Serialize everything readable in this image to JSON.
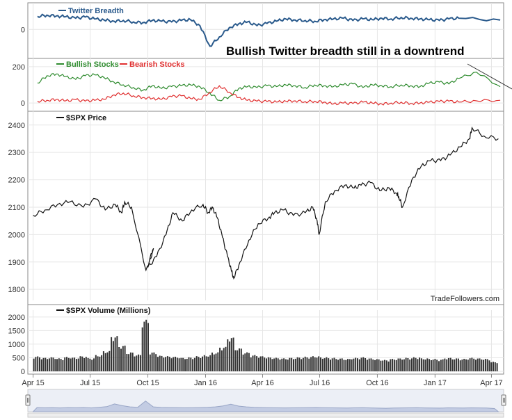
{
  "annotation": "Bullish Twitter breadth still in a downtrend",
  "credit": "TradeFollowers.com",
  "colors": {
    "breadth": "#2a5a8c",
    "bullish": "#2e8b2e",
    "bearish": "#e03030",
    "price": "#111111",
    "volume": "#333333",
    "navigator": "#8f9cbf"
  },
  "chart_data": [
    {
      "type": "line",
      "panel": "twitter-breadth",
      "series": [
        {
          "name": "Twitter Breadth",
          "values": [
            35,
            38,
            36,
            34,
            30,
            33,
            28,
            25,
            22,
            24,
            20,
            18,
            24,
            22,
            20,
            24,
            26,
            10,
            -45,
            -20,
            5,
            15,
            20,
            10,
            16,
            22,
            28,
            25,
            24,
            22,
            26,
            28,
            30,
            24,
            28,
            26,
            30,
            28,
            32,
            30,
            28,
            26,
            24,
            28,
            30,
            25
          ]
        }
      ],
      "x": [
        "2015-04-08",
        "2015-04-23",
        "2015-05-08",
        "2015-05-23",
        "2015-06-08",
        "2015-06-23",
        "2015-07-08",
        "2015-07-23",
        "2015-08-08",
        "2015-08-23",
        "2015-09-08",
        "2015-09-23",
        "2015-10-08",
        "2015-10-23",
        "2015-11-08",
        "2015-11-23",
        "2015-12-08",
        "2015-12-23",
        "2016-01-08",
        "2016-01-23",
        "2016-02-08",
        "2016-02-23",
        "2016-03-08",
        "2016-03-23",
        "2016-04-08",
        "2016-04-23",
        "2016-05-08",
        "2016-05-23",
        "2016-06-08",
        "2016-06-23",
        "2016-07-08",
        "2016-07-23",
        "2016-08-08",
        "2016-08-23",
        "2016-09-08",
        "2016-09-23",
        "2016-10-08",
        "2016-10-23",
        "2016-11-08",
        "2016-11-23",
        "2016-12-08",
        "2016-12-23",
        "2017-01-08",
        "2017-01-23",
        "2017-02-08",
        "2017-04-15"
      ],
      "yticks": [
        0
      ],
      "ylim": [
        -70,
        60
      ]
    },
    {
      "type": "line",
      "panel": "stocks",
      "series": [
        {
          "name": "Bullish Stocks",
          "values": [
            110,
            150,
            160,
            145,
            130,
            150,
            155,
            140,
            115,
            100,
            85,
            70,
            95,
            80,
            90,
            95,
            100,
            90,
            55,
            15,
            35,
            80,
            90,
            85,
            95,
            90,
            100,
            95,
            85,
            100,
            95,
            90,
            100,
            105,
            85,
            100,
            95,
            90,
            100,
            95,
            90,
            110,
            115,
            105,
            135,
            170,
            90
          ]
        },
        {
          "name": "Bearish Stocks",
          "values": [
            10,
            15,
            20,
            12,
            18,
            10,
            15,
            20,
            45,
            55,
            40,
            30,
            25,
            20,
            35,
            40,
            25,
            20,
            60,
            95,
            60,
            30,
            15,
            10,
            8,
            5,
            10,
            12,
            8,
            10,
            5,
            -5,
            0,
            -3,
            5,
            0,
            -5,
            0,
            5,
            -2,
            0,
            5,
            8,
            10,
            5,
            12,
            15
          ]
        }
      ],
      "x": [
        "2015-04-08",
        "2015-04-23",
        "2015-05-08",
        "2015-05-23",
        "2015-06-08",
        "2015-06-23",
        "2015-07-08",
        "2015-07-23",
        "2015-08-08",
        "2015-08-23",
        "2015-09-08",
        "2015-09-23",
        "2015-10-08",
        "2015-10-23",
        "2015-11-08",
        "2015-11-23",
        "2015-12-08",
        "2015-12-23",
        "2016-01-08",
        "2016-01-23",
        "2016-02-08",
        "2016-02-23",
        "2016-03-08",
        "2016-03-23",
        "2016-04-08",
        "2016-04-23",
        "2016-05-08",
        "2016-05-23",
        "2016-06-08",
        "2016-06-23",
        "2016-07-08",
        "2016-07-23",
        "2016-08-08",
        "2016-08-23",
        "2016-09-08",
        "2016-09-23",
        "2016-10-08",
        "2016-10-23",
        "2016-11-08",
        "2016-11-23",
        "2016-12-08",
        "2016-12-23",
        "2017-01-08",
        "2017-01-23",
        "2017-02-08",
        "2017-03-08",
        "2017-04-15"
      ],
      "yticks": [
        0,
        200
      ],
      "ylim": [
        -30,
        230
      ]
    },
    {
      "type": "line",
      "panel": "price",
      "series": [
        {
          "name": "$SPX Price",
          "values": [
            2070,
            2090,
            2110,
            2120,
            2100,
            2130,
            2090,
            2110,
            2080,
            2120,
            2100,
            1870,
            1950,
            1880,
            1920,
            2000,
            2080,
            2050,
            2090,
            2110,
            2080,
            2100,
            2060,
            1990,
            1920,
            1870,
            1840,
            1900,
            1980,
            2040,
            2060,
            2080,
            2090,
            2070,
            2080,
            2100,
            2050,
            2000,
            2120,
            2160,
            2180,
            2170,
            2180,
            2190,
            2160,
            2170,
            2150,
            2140,
            2100,
            2200,
            2250,
            2270,
            2270,
            2290,
            2320,
            2350,
            2390,
            2360,
            2350
          ]
        }
      ],
      "x": [
        "2015-04-01",
        "2015-04-20",
        "2015-05-10",
        "2015-05-30",
        "2015-06-20",
        "2015-07-10",
        "2015-07-25",
        "2015-08-10",
        "2015-08-20",
        "2015-08-25",
        "2015-09-05",
        "2015-09-28",
        "2015-10-10",
        "2015-10-01",
        "2015-10-15",
        "2015-10-30",
        "2015-11-10",
        "2015-11-25",
        "2015-12-10",
        "2015-12-28",
        "2016-01-05",
        "2016-01-12",
        "2016-01-20",
        "2016-01-28",
        "2016-02-05",
        "2016-02-11",
        "2016-02-15",
        "2016-02-25",
        "2016-03-10",
        "2016-03-25",
        "2016-04-10",
        "2016-04-20",
        "2016-05-05",
        "2016-05-20",
        "2016-06-08",
        "2016-06-20",
        "2016-06-27",
        "2016-06-30",
        "2016-07-10",
        "2016-07-25",
        "2016-08-10",
        "2016-08-25",
        "2016-09-05",
        "2016-09-20",
        "2016-10-05",
        "2016-10-20",
        "2016-11-01",
        "2016-11-04",
        "2016-11-10",
        "2016-11-25",
        "2016-12-10",
        "2016-12-25",
        "2017-01-10",
        "2017-01-25",
        "2017-02-10",
        "2017-02-25",
        "2017-03-01",
        "2017-03-20",
        "2017-04-12"
      ],
      "yticks": [
        1800,
        1900,
        2000,
        2100,
        2200,
        2300,
        2400
      ],
      "ylim": [
        1770,
        2440
      ]
    },
    {
      "type": "bar",
      "panel": "volume",
      "series": [
        {
          "name": "$SPX Volume (Millions)",
          "values": [
            550,
            500,
            520,
            480,
            530,
            510,
            560,
            490,
            600,
            750,
            1300,
            950,
            700,
            620,
            1900,
            700,
            580,
            560,
            540,
            500,
            520,
            560,
            600,
            700,
            900,
            1250,
            850,
            700,
            600,
            560,
            520,
            500,
            480,
            500,
            520,
            540,
            560,
            520,
            500,
            480,
            460,
            500,
            520,
            480,
            450,
            420,
            460,
            480,
            500,
            520,
            480,
            460,
            440,
            500,
            480,
            460,
            500,
            480,
            460,
            350
          ]
        }
      ],
      "x_start": "2015-04-01",
      "x_end": "2017-04-12",
      "yticks": [
        0,
        500,
        1000,
        1500,
        2000
      ],
      "ylim": [
        0,
        2150
      ]
    }
  ],
  "xaxis": {
    "ticks": [
      "Apr 15",
      "Jul 15",
      "Oct 15",
      "Jan 16",
      "Apr 16",
      "Jul 16",
      "Oct 16",
      "Jan 17",
      "Apr 17"
    ],
    "tick_dates": [
      "2015-04-01",
      "2015-07-01",
      "2015-10-01",
      "2016-01-01",
      "2016-04-01",
      "2016-07-01",
      "2016-10-01",
      "2017-01-01",
      "2017-04-01"
    ],
    "start": "2015-03-28",
    "end": "2017-04-16"
  }
}
